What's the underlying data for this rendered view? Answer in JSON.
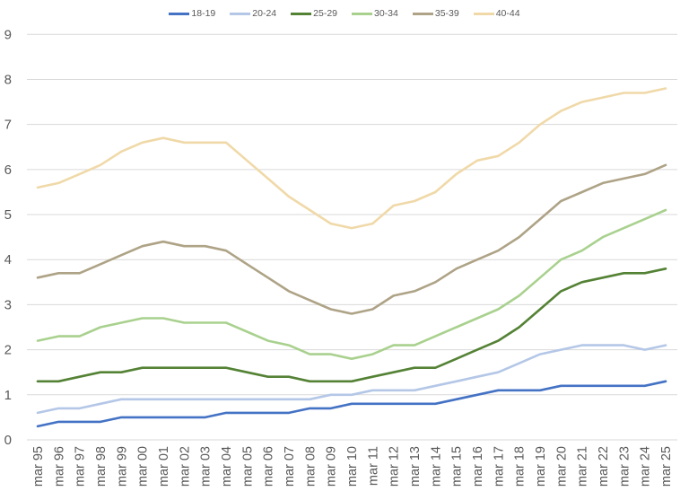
{
  "chart_data": {
    "type": "line",
    "title": "",
    "xlabel": "",
    "ylabel": "",
    "ylim": [
      0,
      9
    ],
    "yticks": [
      0,
      1,
      2,
      3,
      4,
      5,
      6,
      7,
      8,
      9
    ],
    "grid": true,
    "legend_position": "top",
    "categories": [
      "mar 95",
      "mar 96",
      "mar 97",
      "mar 98",
      "mar 99",
      "mar 00",
      "mar 01",
      "mar 02",
      "mar 03",
      "mar 04",
      "mar 05",
      "mar 06",
      "mar 07",
      "mar 08",
      "mar 09",
      "mar 10",
      "mar 11",
      "mar 12",
      "mar 13",
      "mar 14",
      "mar 15",
      "mar 16",
      "mar 17",
      "mar 18",
      "mar 19",
      "mar 20",
      "mar 21",
      "mar 22",
      "mar 23",
      "mar 24",
      "mar 25"
    ],
    "series": [
      {
        "name": "18-19",
        "color": "#4472C4",
        "values": [
          0.3,
          0.4,
          0.4,
          0.4,
          0.5,
          0.5,
          0.5,
          0.5,
          0.5,
          0.6,
          0.6,
          0.6,
          0.6,
          0.7,
          0.7,
          0.8,
          0.8,
          0.8,
          0.8,
          0.8,
          0.9,
          1.0,
          1.1,
          1.1,
          1.1,
          1.2,
          1.2,
          1.2,
          1.2,
          1.2,
          1.3
        ]
      },
      {
        "name": "20-24",
        "color": "#B4C7E7",
        "values": [
          0.6,
          0.7,
          0.7,
          0.8,
          0.9,
          0.9,
          0.9,
          0.9,
          0.9,
          0.9,
          0.9,
          0.9,
          0.9,
          0.9,
          1.0,
          1.0,
          1.1,
          1.1,
          1.1,
          1.2,
          1.3,
          1.4,
          1.5,
          1.7,
          1.9,
          2.0,
          2.1,
          2.1,
          2.1,
          2.0,
          2.1
        ]
      },
      {
        "name": "25-29",
        "color": "#548235",
        "values": [
          1.3,
          1.3,
          1.4,
          1.5,
          1.5,
          1.6,
          1.6,
          1.6,
          1.6,
          1.6,
          1.5,
          1.4,
          1.4,
          1.3,
          1.3,
          1.3,
          1.4,
          1.5,
          1.6,
          1.6,
          1.8,
          2.0,
          2.2,
          2.5,
          2.9,
          3.3,
          3.5,
          3.6,
          3.7,
          3.7,
          3.8
        ]
      },
      {
        "name": "30-34",
        "color": "#A9D18E",
        "values": [
          2.2,
          2.3,
          2.3,
          2.5,
          2.6,
          2.7,
          2.7,
          2.6,
          2.6,
          2.6,
          2.4,
          2.2,
          2.1,
          1.9,
          1.9,
          1.8,
          1.9,
          2.1,
          2.1,
          2.3,
          2.5,
          2.7,
          2.9,
          3.2,
          3.6,
          4.0,
          4.2,
          4.5,
          4.7,
          4.9,
          5.1
        ]
      },
      {
        "name": "35-39",
        "color": "#AEA386",
        "values": [
          3.6,
          3.7,
          3.7,
          3.9,
          4.1,
          4.3,
          4.4,
          4.3,
          4.3,
          4.2,
          3.9,
          3.6,
          3.3,
          3.1,
          2.9,
          2.8,
          2.9,
          3.2,
          3.3,
          3.5,
          3.8,
          4.0,
          4.2,
          4.5,
          4.9,
          5.3,
          5.5,
          5.7,
          5.8,
          5.9,
          6.1
        ]
      },
      {
        "name": "40-44",
        "color": "#F0D9A8",
        "values": [
          5.6,
          5.7,
          5.9,
          6.1,
          6.4,
          6.6,
          6.7,
          6.6,
          6.6,
          6.6,
          6.2,
          5.8,
          5.4,
          5.1,
          4.8,
          4.7,
          4.8,
          5.2,
          5.3,
          5.5,
          5.9,
          6.2,
          6.3,
          6.6,
          7.0,
          7.3,
          7.5,
          7.6,
          7.7,
          7.7,
          7.8
        ]
      }
    ]
  },
  "legend": {
    "items": [
      {
        "label": "18-19"
      },
      {
        "label": "20-24"
      },
      {
        "label": "25-29"
      },
      {
        "label": "30-34"
      },
      {
        "label": "35-39"
      },
      {
        "label": "40-44"
      }
    ]
  }
}
